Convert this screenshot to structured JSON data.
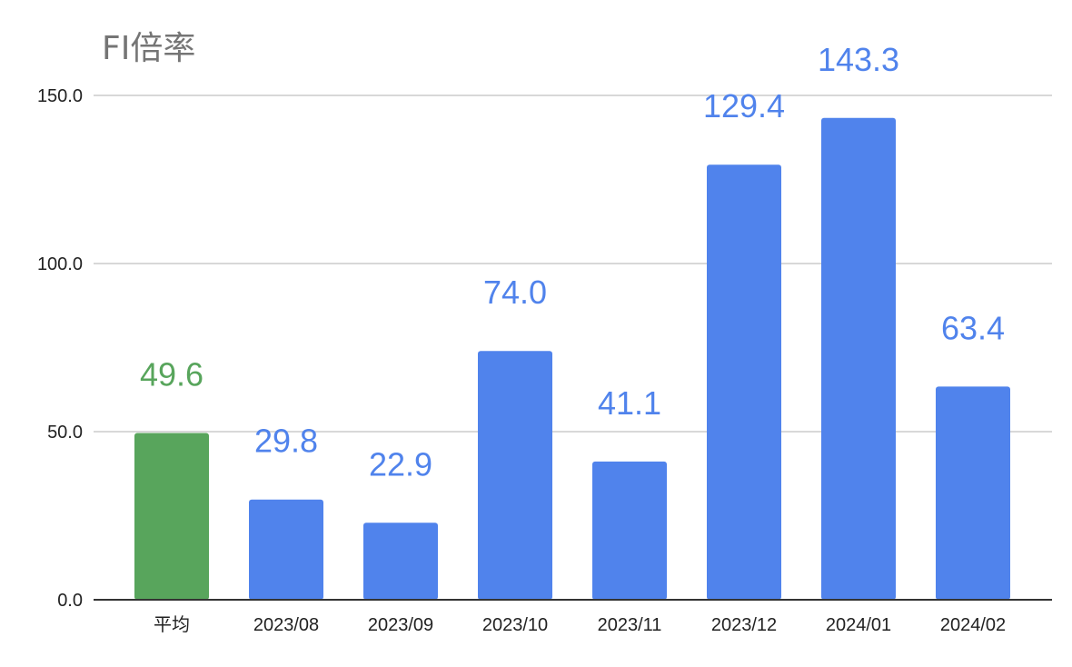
{
  "chart_data": {
    "type": "bar",
    "title": "FI倍率",
    "xlabel": "",
    "ylabel": "",
    "categories": [
      "平均",
      "2023/08",
      "2023/09",
      "2023/10",
      "2023/11",
      "2023/12",
      "2024/01",
      "2024/02"
    ],
    "values": [
      49.6,
      29.8,
      22.9,
      74.0,
      41.1,
      129.4,
      143.3,
      63.4
    ],
    "data_labels": [
      "49.6",
      "29.8",
      "22.9",
      "74.0",
      "41.1",
      "129.4",
      "143.3",
      "63.4"
    ],
    "bar_colors": [
      "#58a55c",
      "#5083ec",
      "#5083ec",
      "#5083ec",
      "#5083ec",
      "#5083ec",
      "#5083ec",
      "#5083ec"
    ],
    "ylim": [
      0,
      150
    ],
    "yticks": [
      0,
      50,
      100,
      150
    ],
    "ytick_labels": [
      "0.0",
      "50.0",
      "100.0",
      "150.0"
    ],
    "grid": true,
    "legend": "none"
  },
  "colors": {
    "series_blue": "#5083ec",
    "average_green": "#58a55c",
    "title": "#757575",
    "gridline": "#cccccc",
    "axis_line": "#333333",
    "tick_text": "#222222"
  }
}
